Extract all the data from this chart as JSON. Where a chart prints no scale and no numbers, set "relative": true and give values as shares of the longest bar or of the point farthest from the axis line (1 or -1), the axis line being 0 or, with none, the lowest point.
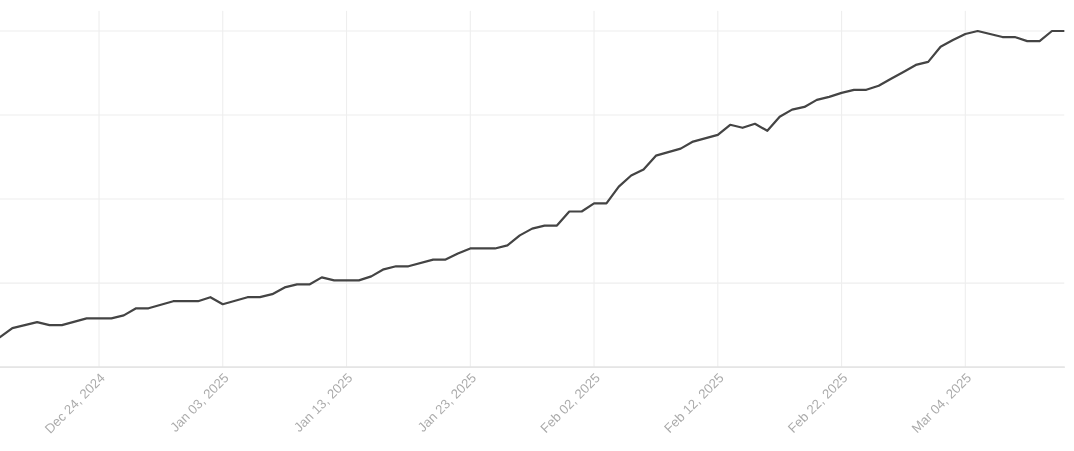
{
  "chart_data": {
    "type": "line",
    "relative": true,
    "grid": true,
    "tick_labels": "x",
    "legend": false,
    "x": [
      "2024-12-16",
      "2024-12-17",
      "2024-12-19",
      "2024-12-20",
      "2024-12-21",
      "2024-12-23",
      "2024-12-25",
      "2024-12-26",
      "2024-12-27",
      "2024-12-28",
      "2024-12-30",
      "2025-01-01",
      "2025-01-02",
      "2025-01-03",
      "2025-01-05",
      "2025-01-06",
      "2025-01-07",
      "2025-01-08",
      "2025-01-09",
      "2025-01-10",
      "2025-01-11",
      "2025-01-12",
      "2025-01-14",
      "2025-01-15",
      "2025-01-16",
      "2025-01-17",
      "2025-01-18",
      "2025-01-20",
      "2025-01-21",
      "2025-01-22",
      "2025-01-23",
      "2025-01-25",
      "2025-01-26",
      "2025-01-27",
      "2025-01-28",
      "2025-01-29",
      "2025-01-30",
      "2025-01-31",
      "2025-02-01",
      "2025-02-02",
      "2025-02-03",
      "2025-02-04",
      "2025-02-05",
      "2025-02-06",
      "2025-02-07",
      "2025-02-09",
      "2025-02-10",
      "2025-02-12",
      "2025-02-13",
      "2025-02-14",
      "2025-02-15",
      "2025-02-16",
      "2025-02-17",
      "2025-02-18",
      "2025-02-19",
      "2025-02-20",
      "2025-02-21",
      "2025-02-22",
      "2025-02-23",
      "2025-02-24",
      "2025-02-25",
      "2025-02-26",
      "2025-02-27",
      "2025-02-28",
      "2025-03-01",
      "2025-03-02",
      "2025-03-03",
      "2025-03-04",
      "2025-03-05",
      "2025-03-06",
      "2025-03-07",
      "2025-03-08",
      "2025-03-09",
      "2025-03-10",
      "2025-03-11",
      "2025-03-12"
    ],
    "series": [
      {
        "color": "#444444",
        "values": [
          0.089,
          0.116,
          0.134,
          0.125,
          0.125,
          0.145,
          0.145,
          0.154,
          0.175,
          0.175,
          0.196,
          0.196,
          0.208,
          0.187,
          0.208,
          0.208,
          0.217,
          0.237,
          0.246,
          0.246,
          0.267,
          0.258,
          0.258,
          0.27,
          0.291,
          0.3,
          0.3,
          0.32,
          0.32,
          0.338,
          0.353,
          0.353,
          0.362,
          0.392,
          0.412,
          0.421,
          0.421,
          0.463,
          0.463,
          0.487,
          0.487,
          0.537,
          0.57,
          0.588,
          0.629,
          0.65,
          0.671,
          0.691,
          0.721,
          0.712,
          0.724,
          0.703,
          0.745,
          0.766,
          0.774,
          0.795,
          0.804,
          0.816,
          0.825,
          0.825,
          0.837,
          0.858,
          0.878,
          0.899,
          0.908,
          0.953,
          0.973,
          0.991,
          1.0,
          0.991,
          0.982,
          0.982,
          0.97,
          0.97,
          1.0,
          1.0
        ]
      }
    ],
    "xlim": [
      "2024-12-16",
      "2025-03-12"
    ],
    "xticks": [
      {
        "value": "2024-12-24",
        "label": "Dec 24, 2024"
      },
      {
        "value": "2025-01-03",
        "label": "Jan 03, 2025"
      },
      {
        "value": "2025-01-13",
        "label": "Jan 13, 2025"
      },
      {
        "value": "2025-01-23",
        "label": "Jan 23, 2025"
      },
      {
        "value": "2025-02-02",
        "label": "Feb 02, 2025"
      },
      {
        "value": "2025-02-12",
        "label": "Feb 12, 2025"
      },
      {
        "value": "2025-02-22",
        "label": "Feb 22, 2025"
      },
      {
        "value": "2025-03-04",
        "label": "Mar 04, 2025"
      }
    ]
  }
}
